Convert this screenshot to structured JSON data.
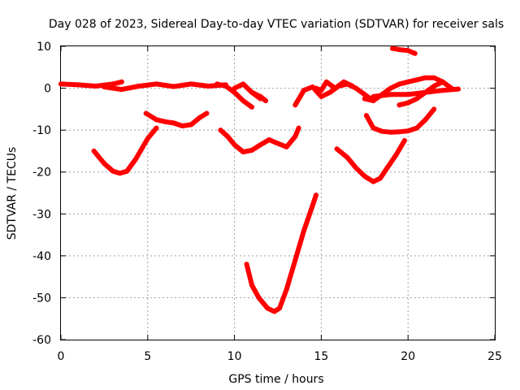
{
  "chart_data": {
    "type": "line",
    "title": "Day 028 of 2023, Sidereal Day-to-day VTEC variation (SDTVAR) for receiver sals",
    "xlabel": "GPS time / hours",
    "ylabel": "SDTVAR / TECUs",
    "xlim": [
      0,
      25
    ],
    "ylim": [
      -60,
      10
    ],
    "xticks": [
      0,
      5,
      10,
      15,
      20,
      25
    ],
    "yticks": [
      -60,
      -50,
      -40,
      -30,
      -20,
      -10,
      0,
      10
    ],
    "grid": true,
    "color": "#ff0000",
    "series": [
      {
        "name": "s1",
        "x": [
          0,
          1,
          2,
          3,
          3.5
        ],
        "y": [
          1,
          0.8,
          0.5,
          1,
          1.5
        ]
      },
      {
        "name": "s2",
        "x": [
          2.5,
          3.5,
          4.5,
          5.5,
          6.5,
          7.5,
          8.5,
          9.5
        ],
        "y": [
          0.3,
          -0.3,
          0.5,
          1,
          0.4,
          1,
          0.5,
          0.8
        ]
      },
      {
        "name": "s3",
        "x": [
          9,
          9.5,
          10,
          10.5,
          11
        ],
        "y": [
          1,
          0.5,
          -1,
          -3,
          -4.5
        ]
      },
      {
        "name": "s4",
        "x": [
          10,
          10.5,
          11,
          11.5
        ],
        "y": [
          0,
          1,
          -1,
          -2.5
        ]
      },
      {
        "name": "s5",
        "x": [
          11,
          11.5,
          11.8
        ],
        "y": [
          -1,
          -2,
          -3
        ]
      },
      {
        "name": "s6",
        "x": [
          1.9,
          2.5,
          3,
          3.4,
          3.8,
          4.3,
          5,
          5.5
        ],
        "y": [
          -15,
          -18,
          -19.8,
          -20.3,
          -19.8,
          -17,
          -12,
          -9.5
        ]
      },
      {
        "name": "s7",
        "x": [
          4.9,
          5.5,
          6,
          6.5,
          7,
          7.5,
          8,
          8.4
        ],
        "y": [
          -6,
          -7.5,
          -8,
          -8.3,
          -9,
          -8.7,
          -7,
          -6
        ]
      },
      {
        "name": "s8",
        "x": [
          9.2,
          9.6,
          10,
          10.5,
          11,
          11.5,
          12,
          12.5,
          13,
          13.5,
          13.7
        ],
        "y": [
          -10,
          -11.5,
          -13.5,
          -15.2,
          -14.8,
          -13.5,
          -12.3,
          -13.2,
          -14,
          -11.5,
          -9.5
        ]
      },
      {
        "name": "s9",
        "x": [
          10.7,
          11,
          11.4,
          11.9,
          12.3,
          12.6,
          13,
          13.5,
          14,
          14.5,
          14.7
        ],
        "y": [
          -42,
          -47,
          -50,
          -52.5,
          -53.3,
          -52.5,
          -48,
          -41,
          -34,
          -28,
          -25.5
        ]
      },
      {
        "name": "s10",
        "x": [
          13.5,
          14,
          14.5,
          15,
          15.5,
          16,
          16.5,
          17,
          17.5,
          18
        ],
        "y": [
          -4,
          -0.5,
          0.3,
          -2,
          -1,
          0.5,
          1,
          0,
          -1.5,
          -3
        ]
      },
      {
        "name": "s11",
        "x": [
          14.7,
          15,
          15.3,
          15.8,
          16.3,
          16.8
        ],
        "y": [
          0,
          -0.5,
          1.5,
          0,
          1.5,
          0.5
        ]
      },
      {
        "name": "s12",
        "x": [
          17.5,
          18,
          18.5,
          19,
          19.5,
          20,
          20.5,
          21,
          21.5,
          22,
          22.5
        ],
        "y": [
          -2.5,
          -3,
          -1.5,
          0,
          1,
          1.5,
          2,
          2.5,
          2.5,
          1.5,
          0
        ]
      },
      {
        "name": "s13",
        "x": [
          18,
          19,
          20,
          21,
          22,
          22.9
        ],
        "y": [
          -2,
          -1.5,
          -1.5,
          -1,
          -0.5,
          -0.2
        ]
      },
      {
        "name": "s14",
        "x": [
          19.5,
          20,
          20.5,
          21,
          21.5,
          22
        ],
        "y": [
          -4,
          -3.5,
          -2.5,
          -1,
          0.5,
          1.5
        ]
      },
      {
        "name": "s15",
        "x": [
          19.1,
          19.5,
          20,
          20.4
        ],
        "y": [
          9.5,
          9.2,
          9,
          8.3
        ]
      },
      {
        "name": "s16",
        "x": [
          17.6,
          18,
          18.5,
          19,
          19.5,
          20,
          20.5,
          21,
          21.5
        ],
        "y": [
          -6.5,
          -9.5,
          -10.3,
          -10.5,
          -10.4,
          -10.2,
          -9.5,
          -7.5,
          -5
        ]
      },
      {
        "name": "s17",
        "x": [
          15.9,
          16.5,
          17,
          17.5,
          18,
          18.4,
          18.8,
          19.3,
          19.8
        ],
        "y": [
          -14.5,
          -16.5,
          -19,
          -21,
          -22.3,
          -21.5,
          -19,
          -16,
          -12.5
        ]
      }
    ]
  }
}
